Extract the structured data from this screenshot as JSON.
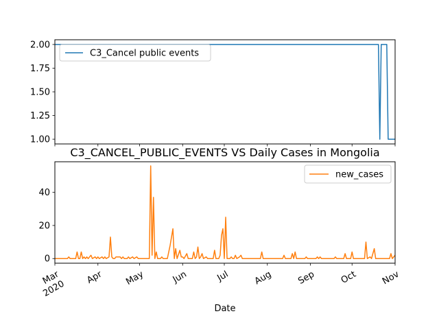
{
  "chart_data": [
    {
      "type": "line",
      "title": "",
      "xlabel": "",
      "ylabel": "",
      "ylim": [
        0.95,
        2.05
      ],
      "yticks": [
        "1.00",
        "1.25",
        "1.50",
        "1.75",
        "2.00"
      ],
      "legend_location": "upper-left",
      "series": [
        {
          "name": "C3_Cancel public events",
          "color": "#1f77b4",
          "points": [
            [
              "2020-03-01",
              2
            ],
            [
              "2020-10-20",
              2
            ],
            [
              "2020-10-21",
              1
            ],
            [
              "2020-10-22",
              2
            ],
            [
              "2020-10-26",
              2
            ],
            [
              "2020-10-27",
              1
            ],
            [
              "2020-11-01",
              1
            ]
          ]
        }
      ]
    },
    {
      "type": "line",
      "title": "C3_CANCEL_PUBLIC_EVENTS VS Daily Cases in Mongolia",
      "xlabel": "Date",
      "ylabel": "",
      "ylim": [
        -2.8,
        58.5
      ],
      "yticks": [
        "0",
        "20",
        "40"
      ],
      "xlim": [
        "2020-03-01",
        "2020-11-01"
      ],
      "xticks": [
        {
          "date": "2020-03-01",
          "label": "Mar",
          "sublabel": "2020"
        },
        {
          "date": "2020-04-01",
          "label": "Apr"
        },
        {
          "date": "2020-05-01",
          "label": "May"
        },
        {
          "date": "2020-06-01",
          "label": "Jun"
        },
        {
          "date": "2020-07-01",
          "label": "Jul"
        },
        {
          "date": "2020-08-01",
          "label": "Aug"
        },
        {
          "date": "2020-09-01",
          "label": "Sep"
        },
        {
          "date": "2020-10-01",
          "label": "Oct"
        },
        {
          "date": "2020-11-01",
          "label": "Nov"
        }
      ],
      "legend_location": "upper-right",
      "series": [
        {
          "name": "new_cases",
          "color": "#ff7f0e",
          "points": [
            [
              "2020-03-01",
              0
            ],
            [
              "2020-03-10",
              0
            ],
            [
              "2020-03-11",
              1
            ],
            [
              "2020-03-12",
              0
            ],
            [
              "2020-03-16",
              0
            ],
            [
              "2020-03-17",
              4
            ],
            [
              "2020-03-18",
              0
            ],
            [
              "2020-03-19",
              0
            ],
            [
              "2020-03-20",
              4
            ],
            [
              "2020-03-21",
              0
            ],
            [
              "2020-03-22",
              1
            ],
            [
              "2020-03-23",
              0
            ],
            [
              "2020-03-24",
              1
            ],
            [
              "2020-03-25",
              0
            ],
            [
              "2020-03-27",
              2
            ],
            [
              "2020-03-28",
              0
            ],
            [
              "2020-03-30",
              1
            ],
            [
              "2020-03-31",
              0
            ],
            [
              "2020-04-01",
              1
            ],
            [
              "2020-04-02",
              0
            ],
            [
              "2020-04-04",
              1
            ],
            [
              "2020-04-05",
              0
            ],
            [
              "2020-04-06",
              1
            ],
            [
              "2020-04-07",
              0
            ],
            [
              "2020-04-09",
              1
            ],
            [
              "2020-04-10",
              13
            ],
            [
              "2020-04-11",
              1
            ],
            [
              "2020-04-12",
              0
            ],
            [
              "2020-04-13",
              0
            ],
            [
              "2020-04-14",
              1
            ],
            [
              "2020-04-15",
              1
            ],
            [
              "2020-04-17",
              1
            ],
            [
              "2020-04-18",
              0
            ],
            [
              "2020-04-19",
              1
            ],
            [
              "2020-04-20",
              0
            ],
            [
              "2020-04-22",
              0
            ],
            [
              "2020-04-23",
              1
            ],
            [
              "2020-04-24",
              0
            ],
            [
              "2020-04-26",
              1
            ],
            [
              "2020-04-27",
              0
            ],
            [
              "2020-04-29",
              1
            ],
            [
              "2020-04-30",
              0
            ],
            [
              "2020-05-08",
              0
            ],
            [
              "2020-05-09",
              56
            ],
            [
              "2020-05-10",
              2
            ],
            [
              "2020-05-11",
              37
            ],
            [
              "2020-05-12",
              0
            ],
            [
              "2020-05-13",
              4
            ],
            [
              "2020-05-14",
              0
            ],
            [
              "2020-05-16",
              0
            ],
            [
              "2020-05-17",
              1
            ],
            [
              "2020-05-18",
              0
            ],
            [
              "2020-05-21",
              0
            ],
            [
              "2020-05-23",
              8
            ],
            [
              "2020-05-25",
              18
            ],
            [
              "2020-05-26",
              0
            ],
            [
              "2020-05-27",
              6
            ],
            [
              "2020-05-28",
              0
            ],
            [
              "2020-05-30",
              5
            ],
            [
              "2020-05-31",
              1
            ],
            [
              "2020-06-01",
              1
            ],
            [
              "2020-06-02",
              0
            ],
            [
              "2020-06-04",
              3
            ],
            [
              "2020-06-05",
              0
            ],
            [
              "2020-06-08",
              0
            ],
            [
              "2020-06-09",
              4
            ],
            [
              "2020-06-10",
              0
            ],
            [
              "2020-06-11",
              1
            ],
            [
              "2020-06-12",
              7
            ],
            [
              "2020-06-13",
              0
            ],
            [
              "2020-06-14",
              1
            ],
            [
              "2020-06-15",
              3
            ],
            [
              "2020-06-16",
              0
            ],
            [
              "2020-06-18",
              1
            ],
            [
              "2020-06-19",
              0
            ],
            [
              "2020-06-23",
              0
            ],
            [
              "2020-06-24",
              5
            ],
            [
              "2020-06-25",
              0
            ],
            [
              "2020-06-27",
              0
            ],
            [
              "2020-06-28",
              2
            ],
            [
              "2020-06-29",
              14
            ],
            [
              "2020-06-30",
              18
            ],
            [
              "2020-07-01",
              0
            ],
            [
              "2020-07-02",
              25
            ],
            [
              "2020-07-03",
              0
            ],
            [
              "2020-07-05",
              0
            ],
            [
              "2020-07-06",
              1
            ],
            [
              "2020-07-07",
              0
            ],
            [
              "2020-07-08",
              0
            ],
            [
              "2020-07-09",
              2
            ],
            [
              "2020-07-10",
              0
            ],
            [
              "2020-07-12",
              1
            ],
            [
              "2020-07-13",
              2
            ],
            [
              "2020-07-14",
              0
            ],
            [
              "2020-07-27",
              0
            ],
            [
              "2020-07-28",
              4
            ],
            [
              "2020-07-29",
              0
            ],
            [
              "2020-08-12",
              0
            ],
            [
              "2020-08-13",
              2
            ],
            [
              "2020-08-14",
              0
            ],
            [
              "2020-08-18",
              0
            ],
            [
              "2020-08-19",
              3
            ],
            [
              "2020-08-20",
              0
            ],
            [
              "2020-08-21",
              4
            ],
            [
              "2020-08-22",
              0
            ],
            [
              "2020-08-28",
              0
            ],
            [
              "2020-08-29",
              1
            ],
            [
              "2020-08-30",
              0
            ],
            [
              "2020-09-05",
              0
            ],
            [
              "2020-09-06",
              1
            ],
            [
              "2020-09-07",
              0
            ],
            [
              "2020-09-08",
              1
            ],
            [
              "2020-09-09",
              0
            ],
            [
              "2020-09-18",
              0
            ],
            [
              "2020-09-19",
              1
            ],
            [
              "2020-09-20",
              0
            ],
            [
              "2020-09-25",
              0
            ],
            [
              "2020-09-26",
              3
            ],
            [
              "2020-09-27",
              0
            ],
            [
              "2020-09-30",
              0
            ],
            [
              "2020-10-01",
              4
            ],
            [
              "2020-10-02",
              0
            ],
            [
              "2020-10-10",
              0
            ],
            [
              "2020-10-11",
              10
            ],
            [
              "2020-10-12",
              0
            ],
            [
              "2020-10-14",
              1
            ],
            [
              "2020-10-15",
              0
            ],
            [
              "2020-10-17",
              6
            ],
            [
              "2020-10-18",
              0
            ],
            [
              "2020-10-28",
              0
            ],
            [
              "2020-10-29",
              3
            ],
            [
              "2020-10-30",
              0
            ],
            [
              "2020-11-01",
              2
            ]
          ]
        }
      ]
    }
  ]
}
